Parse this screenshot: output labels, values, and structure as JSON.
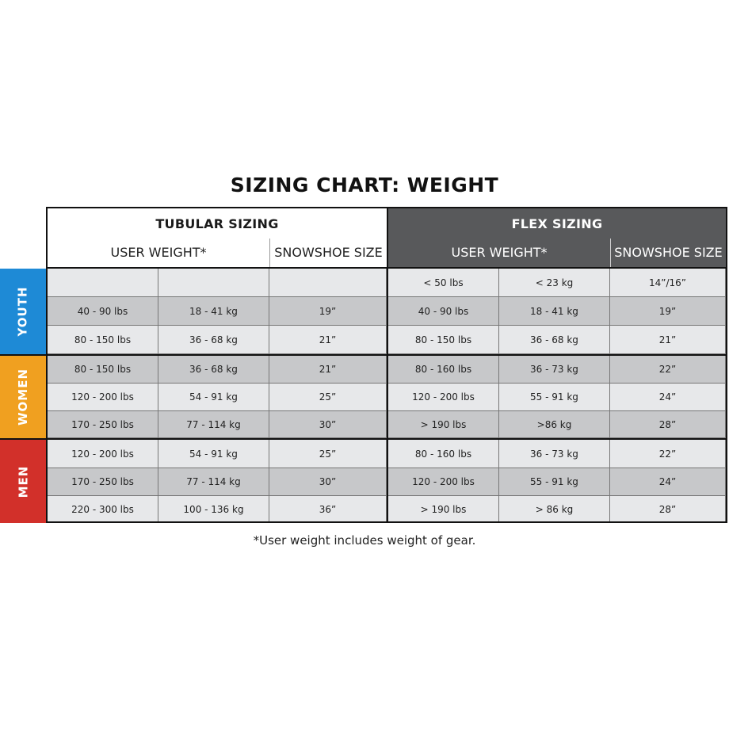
{
  "title": "SIZING CHART: WEIGHT",
  "tubular": {
    "title": "TUBULAR SIZING",
    "col_user_weight": "USER WEIGHT*",
    "col_snowshoe_size": "SNOWSHOE SIZE"
  },
  "flex": {
    "title": "FLEX SIZING",
    "col_user_weight": "USER WEIGHT*",
    "col_snowshoe_size": "SNOWSHOE SIZE"
  },
  "categories": [
    {
      "label": "YOUTH",
      "color": "#1e8ad6"
    },
    {
      "label": "WOMEN",
      "color": "#f0a020"
    },
    {
      "label": "MEN",
      "color": "#d2302a"
    }
  ],
  "rows": [
    {
      "tubular": [
        "",
        "",
        ""
      ],
      "flex": [
        "< 50 lbs",
        "< 23 kg",
        "14”/16”"
      ]
    },
    {
      "tubular": [
        "40 - 90 lbs",
        "18 - 41 kg",
        "19”"
      ],
      "flex": [
        "40 - 90 lbs",
        "18 - 41 kg",
        "19”"
      ]
    },
    {
      "tubular": [
        "80 - 150 lbs",
        "36 - 68 kg",
        "21”"
      ],
      "flex": [
        "80 - 150 lbs",
        "36 - 68 kg",
        "21”"
      ]
    },
    {
      "tubular": [
        "80 - 150 lbs",
        "36 - 68 kg",
        "21”"
      ],
      "flex": [
        "80 - 160 lbs",
        "36 - 73 kg",
        "22”"
      ]
    },
    {
      "tubular": [
        "120 - 200 lbs",
        "54 - 91 kg",
        "25”"
      ],
      "flex": [
        "120 - 200 lbs",
        "55 - 91 kg",
        "24”"
      ]
    },
    {
      "tubular": [
        "170 - 250 lbs",
        "77 - 114 kg",
        "30”"
      ],
      "flex": [
        "> 190 lbs",
        ">86 kg",
        "28”"
      ]
    },
    {
      "tubular": [
        "120 - 200 lbs",
        "54 - 91 kg",
        "25”"
      ],
      "flex": [
        "80 - 160 lbs",
        "36 - 73 kg",
        "22”"
      ]
    },
    {
      "tubular": [
        "170 - 250 lbs",
        "77 - 114 kg",
        "30”"
      ],
      "flex": [
        "120 - 200 lbs",
        "55 - 91 kg",
        "24”"
      ]
    },
    {
      "tubular": [
        "220 - 300 lbs",
        "100 - 136 kg",
        "36”"
      ],
      "flex": [
        "> 190 lbs",
        "> 86 kg",
        "28”"
      ]
    }
  ],
  "footnote": "*User weight includes weight of gear."
}
